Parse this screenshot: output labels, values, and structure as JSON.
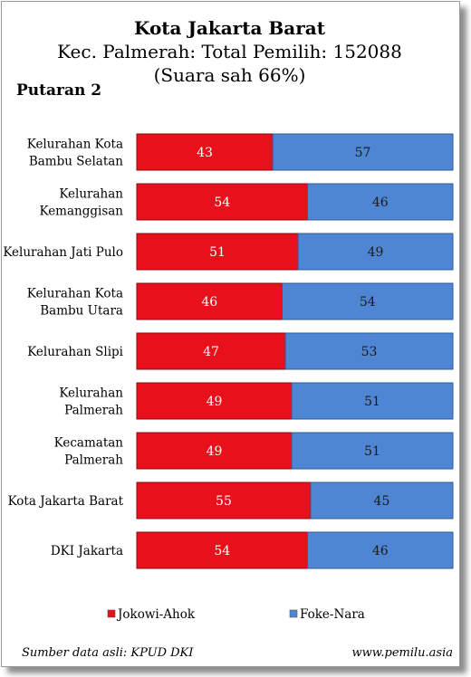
{
  "chart_data": {
    "type": "bar",
    "stacked": true,
    "orientation": "horizontal",
    "title": "Kota Jakarta Barat",
    "subtitle": "Kec. Palmerah: Total Pemilih: 152088",
    "subtitle2": "(Suara sah 66%)",
    "round_label": "Putaran 2",
    "categories": [
      [
        "Kelurahan Kota",
        "Bambu Selatan"
      ],
      [
        "Kelurahan",
        "Kemanggisan"
      ],
      [
        "Kelurahan Jati Pulo"
      ],
      [
        "Kelurahan Kota",
        "Bambu Utara"
      ],
      [
        "Kelurahan Slipi"
      ],
      [
        "Kelurahan",
        "Palmerah"
      ],
      [
        "Kecamatan",
        "Palmerah"
      ],
      [
        "Kota Jakarta Barat"
      ],
      [
        "DKI Jakarta"
      ]
    ],
    "series": [
      {
        "name": "Jokowi-Ahok",
        "color": "#e8101a",
        "values": [
          43,
          54,
          51,
          46,
          47,
          49,
          49,
          55,
          54
        ]
      },
      {
        "name": "Foke-Nara",
        "color": "#4f86d4",
        "values": [
          57,
          46,
          49,
          54,
          53,
          51,
          51,
          45,
          46
        ]
      }
    ],
    "xlim": [
      0,
      100
    ],
    "grid": false,
    "legend": "bottom"
  },
  "footer": {
    "source": "Sumber data asli: KPUD DKI",
    "site": "www.pemilu.asia"
  }
}
